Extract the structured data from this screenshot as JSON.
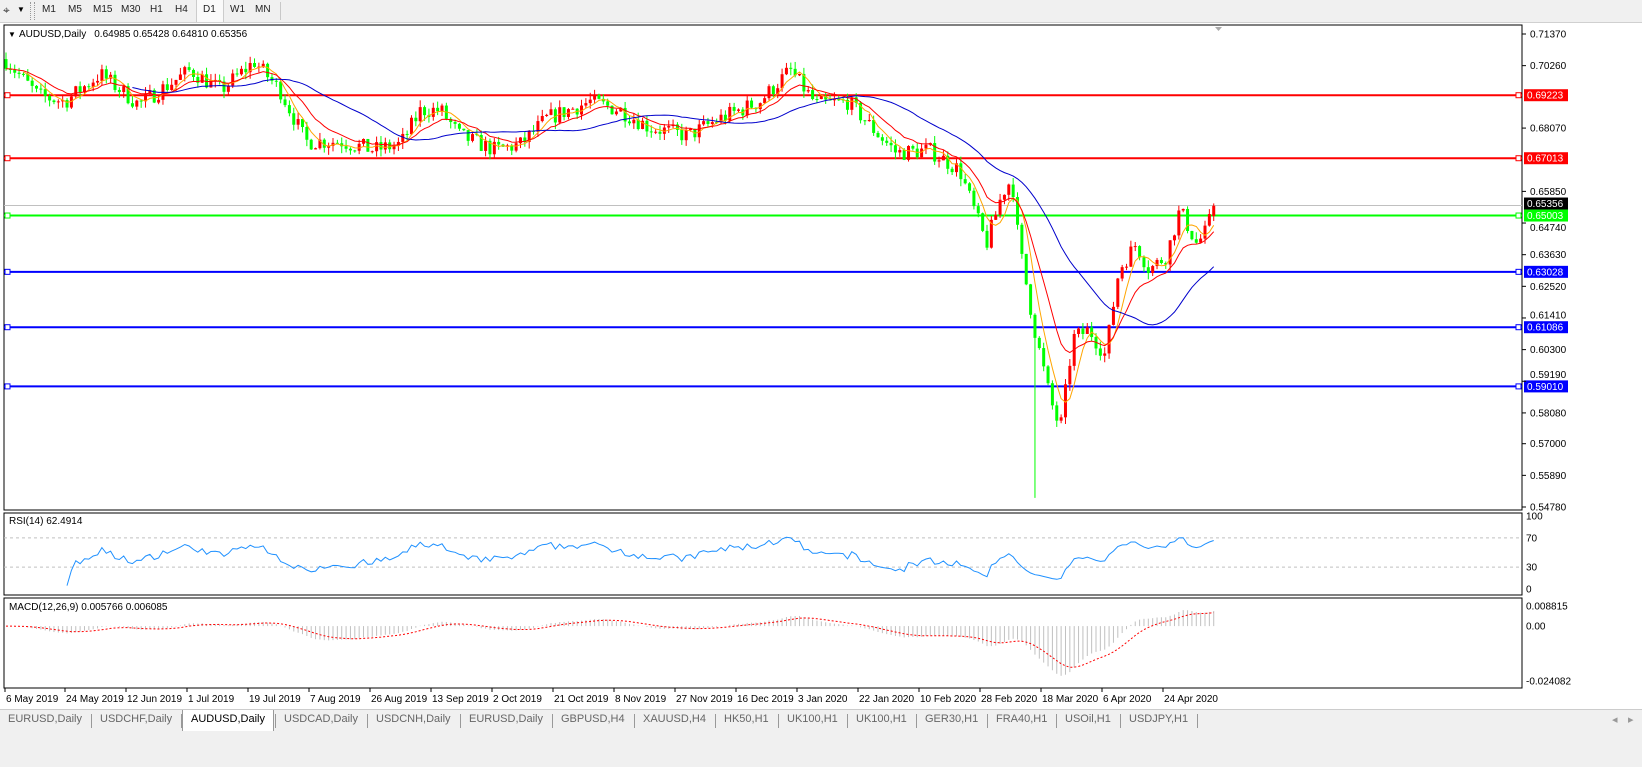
{
  "toolbar": {
    "timeframes": [
      "M1",
      "M5",
      "M15",
      "M30",
      "H1",
      "H4",
      "D1",
      "W1",
      "MN"
    ],
    "active_timeframe": "D1",
    "tool_icon": "crosshair-tools-icon"
  },
  "chart": {
    "symbol_label": "AUDUSD,Daily",
    "ohlc": "0.64985 0.65428 0.64810 0.65356",
    "price_ticks": [
      "0.71370",
      "0.70260",
      "0.68070",
      "0.65850",
      "0.64740",
      "0.63630",
      "0.62520",
      "0.61410",
      "0.60300",
      "0.59190",
      "0.58080",
      "0.57000",
      "0.55890",
      "0.54780"
    ],
    "current_price": "0.65356",
    "levels": [
      {
        "value": "0.69223",
        "color": "#ff0000"
      },
      {
        "value": "0.67013",
        "color": "#ff0000"
      },
      {
        "value": "0.65003",
        "color": "#00ff00"
      },
      {
        "value": "0.63028",
        "color": "#0000ff"
      },
      {
        "value": "0.61086",
        "color": "#0000ff"
      },
      {
        "value": "0.59010",
        "color": "#0000ff"
      }
    ],
    "colors": {
      "bull": "#ff0000",
      "bear": "#00ff00",
      "ma_fast": "#ffa500",
      "ma_mid": "#ff0000",
      "ma_slow": "#0000cc",
      "rsi": "#1e90ff",
      "macd_hist": "#c0c0c0",
      "macd_signal": "#ff0000"
    }
  },
  "rsi": {
    "label": "RSI(14) 62.4914",
    "ticks": [
      "100",
      "70",
      "30",
      "0"
    ]
  },
  "macd": {
    "label": "MACD(12,26,9) 0.005766 0.006085",
    "ticks": [
      "0.008815",
      "0.00",
      "-0.024082"
    ]
  },
  "dates": [
    "6 May 2019",
    "24 May 2019",
    "12 Jun 2019",
    "1 Jul 2019",
    "19 Jul 2019",
    "7 Aug 2019",
    "26 Aug 2019",
    "13 Sep 2019",
    "2 Oct 2019",
    "21 Oct 2019",
    "8 Nov 2019",
    "27 Nov 2019",
    "16 Dec 2019",
    "3 Jan 2020",
    "22 Jan 2020",
    "10 Feb 2020",
    "28 Feb 2020",
    "18 Mar 2020",
    "6 Apr 2020",
    "24 Apr 2020"
  ],
  "tabs": [
    "EURUSD,Daily",
    "USDCHF,Daily",
    "AUDUSD,Daily",
    "USDCAD,Daily",
    "USDCNH,Daily",
    "EURUSD,Daily",
    "GBPUSD,H4",
    "XAUUSD,H4",
    "HK50,H1",
    "UK100,H1",
    "UK100,H1",
    "GER30,H1",
    "FRA40,H1",
    "USOil,H1",
    "USDJPY,H1"
  ],
  "active_tab": "AUDUSD,Daily",
  "chart_data": {
    "type": "candlestick",
    "title": "AUDUSD,Daily",
    "ylim": [
      0.5478,
      0.7137
    ],
    "close_path": [
      [
        "6 May 2019",
        0.7049
      ],
      [
        "16 May 2019",
        0.692
      ],
      [
        "24 May 2019",
        0.69
      ],
      [
        "4 Jun 2019",
        0.6996
      ],
      [
        "16 Jun 2019",
        0.689
      ],
      [
        "2 Jul 2019",
        0.701
      ],
      [
        "11 Jul 2019",
        0.694
      ],
      [
        "21 Jul 2019",
        0.704
      ],
      [
        "29 Jul 2019",
        0.694
      ],
      [
        "6 Aug 2019",
        0.676
      ],
      [
        "17 Aug 2019",
        0.676
      ],
      [
        "27 Aug 2019",
        0.673
      ],
      [
        "4 Sep 2019",
        0.675
      ],
      [
        "10 Sep 2019",
        0.687
      ],
      [
        "16 Sep 2019",
        0.687
      ],
      [
        "22 Sep 2019",
        0.678
      ],
      [
        "3 Oct 2019",
        0.673
      ],
      [
        "11 Oct 2019",
        0.675
      ],
      [
        "19 Oct 2019",
        0.684
      ],
      [
        "1 Nov 2019",
        0.69
      ],
      [
        "10 Nov 2019",
        0.687
      ],
      [
        "19 Nov 2019",
        0.681
      ],
      [
        "1 Dec 2019",
        0.678
      ],
      [
        "11 Dec 2019",
        0.684
      ],
      [
        "23 Dec 2019",
        0.69
      ],
      [
        "1 Jan 2020",
        0.701
      ],
      [
        "9 Jan 2020",
        0.689
      ],
      [
        "19 Jan 2020",
        0.69
      ],
      [
        "27 Jan 2020",
        0.68
      ],
      [
        "3 Feb 2020",
        0.672
      ],
      [
        "13 Feb 2020",
        0.673
      ],
      [
        "22 Feb 2020",
        0.666
      ],
      [
        "1 Mar 2020",
        0.64
      ],
      [
        "6 Mar 2020",
        0.658
      ],
      [
        "9 Mar 2020",
        0.663
      ],
      [
        "11 Mar 2020",
        0.641
      ],
      [
        "16 Mar 2020",
        0.61
      ],
      [
        "21 Mar 2020",
        0.585
      ],
      [
        "24 Mar 2020",
        0.575
      ],
      [
        "28 Mar 2020",
        0.607
      ],
      [
        "2 Apr 2020",
        0.61
      ],
      [
        "7 Apr 2020",
        0.601
      ],
      [
        "11 Apr 2020",
        0.631
      ],
      [
        "16 Apr 2020",
        0.64
      ],
      [
        "20 Apr 2020",
        0.631
      ],
      [
        "25 Apr 2020",
        0.636
      ],
      [
        "29 Apr 2020",
        0.652
      ],
      [
        "4 May 2020",
        0.64
      ],
      [
        "7 May 2020",
        0.645
      ],
      [
        "9 May 2020",
        0.6536
      ]
    ],
    "indicators": [
      "RSI(14)",
      "MACD(12,26,9)"
    ]
  }
}
